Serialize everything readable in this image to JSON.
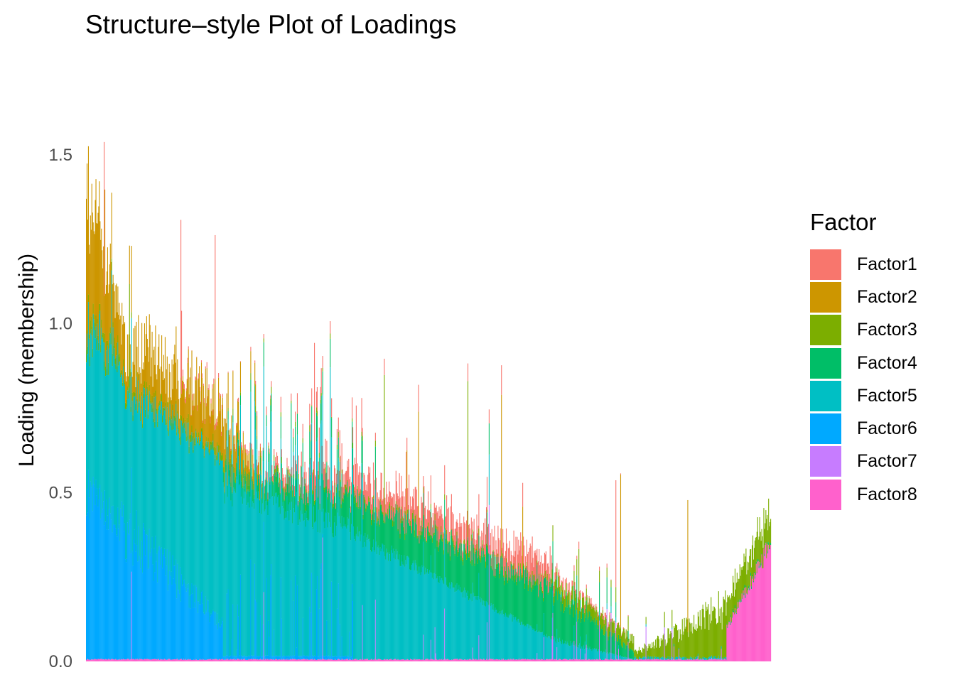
{
  "chart_data": {
    "type": "bar",
    "stacked": true,
    "title": "Structure–style Plot of Loadings",
    "xlabel": "",
    "ylabel": "Loading (membership)",
    "ylim": [
      0,
      1.7
    ],
    "yticks": [
      0.0,
      0.5,
      1.0,
      1.5
    ],
    "ytick_labels": [
      "0.0",
      "0.5",
      "1.0",
      "1.5"
    ],
    "grid": false,
    "legend": {
      "title": "Factor",
      "position": "right"
    },
    "n_samples": 1000,
    "x_order": "samples sorted by dominant factor and loading",
    "series": [
      {
        "name": "Factor1",
        "color": "#F8766D"
      },
      {
        "name": "Factor2",
        "color": "#CD9600"
      },
      {
        "name": "Factor3",
        "color": "#7CAE00"
      },
      {
        "name": "Factor4",
        "color": "#00BE67"
      },
      {
        "name": "Factor5",
        "color": "#00BFC4"
      },
      {
        "name": "Factor6",
        "color": "#00A9FF"
      },
      {
        "name": "Factor7",
        "color": "#C77CFF"
      },
      {
        "name": "Factor8",
        "color": "#FF61CC"
      }
    ],
    "approx_profiles": [
      {
        "sample_range": [
          1,
          50
        ],
        "total": [
          1.35,
          0.98
        ],
        "Factor5": [
          0.45,
          0.5
        ],
        "Factor6": [
          0.5,
          0.4
        ],
        "Factor2": [
          0.35,
          0.08
        ]
      },
      {
        "sample_range": [
          50,
          200
        ],
        "total": [
          0.98,
          0.72
        ],
        "Factor5": [
          0.5,
          0.5
        ],
        "Factor6": [
          0.4,
          0.1
        ],
        "Factor2": [
          0.08,
          0.12
        ]
      },
      {
        "sample_range": [
          200,
          390
        ],
        "total": [
          0.72,
          0.55
        ],
        "Factor5": [
          0.5,
          0.37
        ],
        "Factor4": [
          0.03,
          0.1
        ],
        "Factor1": [
          0.0,
          0.06
        ]
      },
      {
        "sample_range": [
          390,
          680
        ],
        "total": [
          0.55,
          0.26
        ],
        "Factor5": [
          0.37,
          0.06
        ],
        "Factor4": [
          0.1,
          0.14
        ],
        "Factor1": [
          0.06,
          0.06
        ]
      },
      {
        "sample_range": [
          680,
          800
        ],
        "total": [
          0.26,
          0.04
        ],
        "Factor5": [
          0.06,
          0.0
        ],
        "Factor4": [
          0.14,
          0.02
        ],
        "Factor3": [
          0.02,
          0.02
        ]
      },
      {
        "sample_range": [
          800,
          935
        ],
        "total": [
          0.02,
          0.15
        ],
        "Factor3": [
          0.02,
          0.15
        ]
      },
      {
        "sample_range": [
          935,
          1000
        ],
        "total": [
          0.18,
          0.45
        ],
        "Factor8": [
          0.1,
          0.35
        ],
        "Factor3": [
          0.08,
          0.1
        ]
      }
    ]
  }
}
